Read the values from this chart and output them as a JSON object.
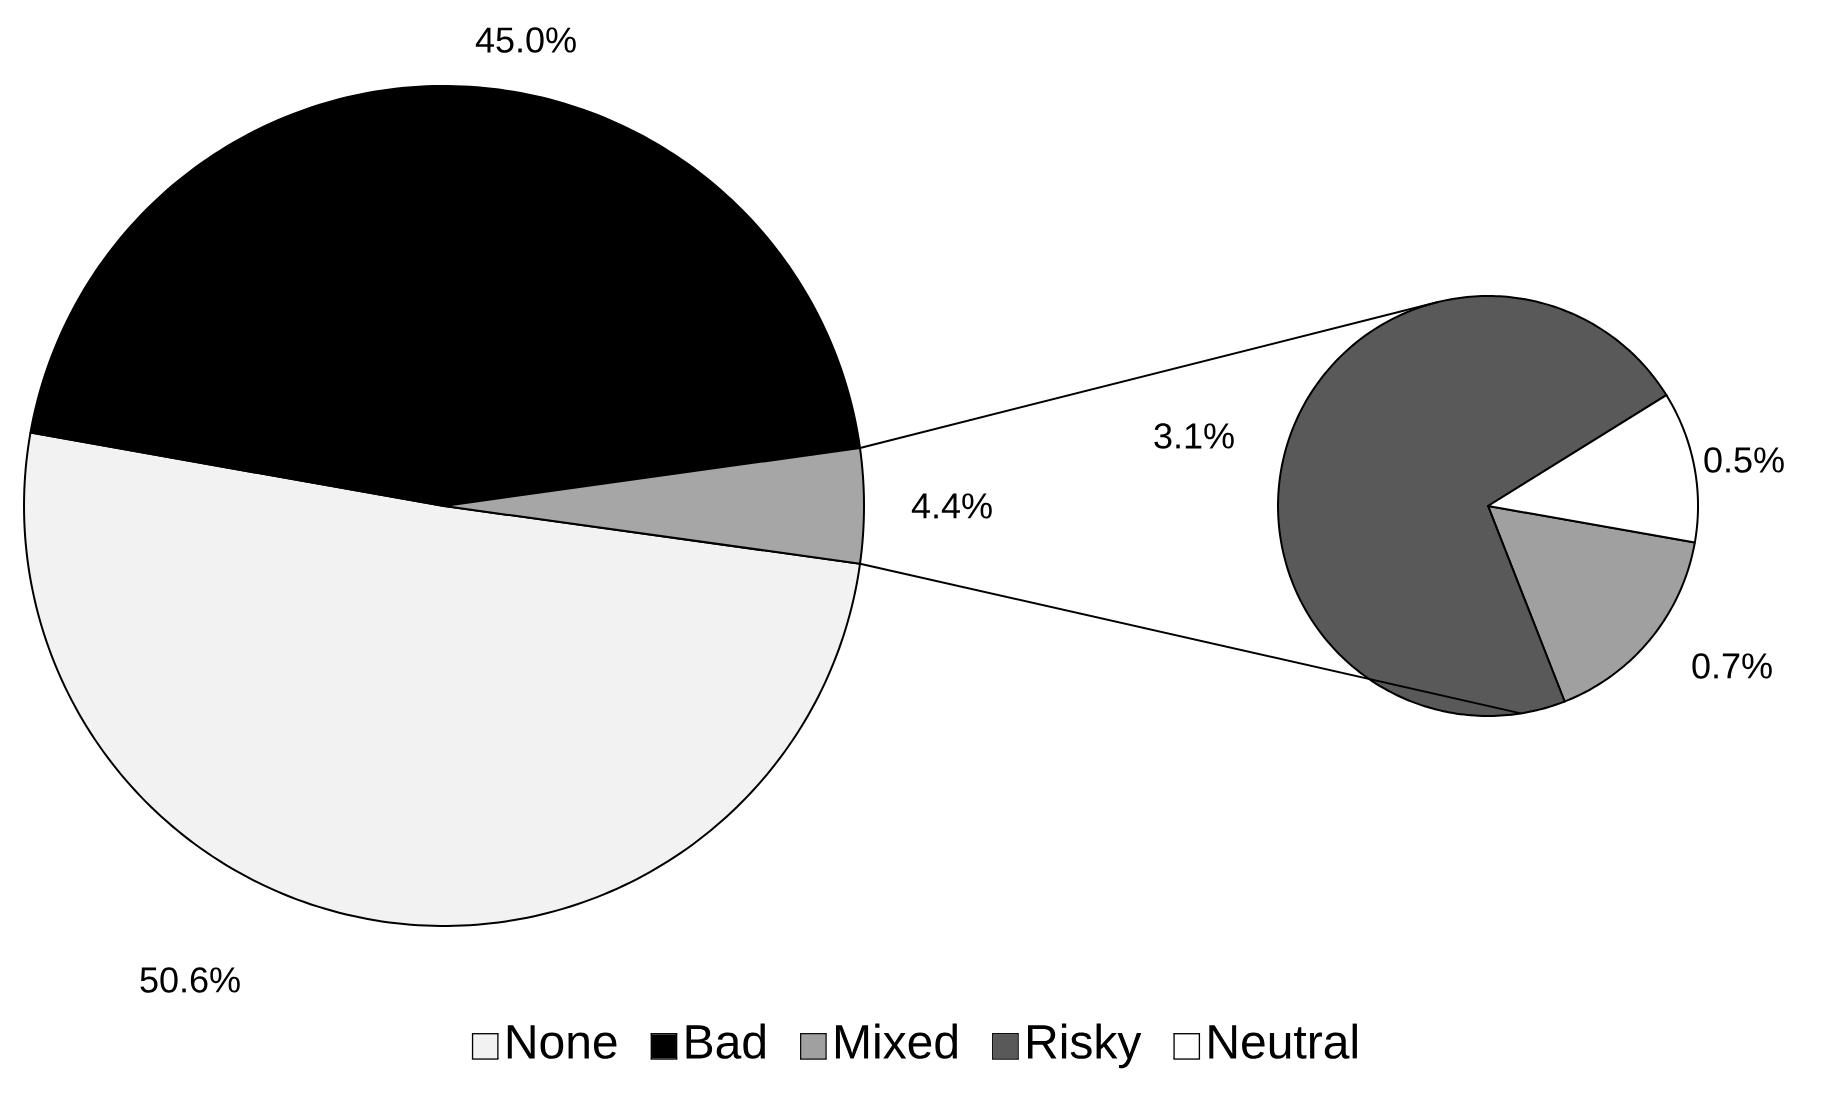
{
  "chart_data": [
    {
      "type": "pie",
      "categories": [
        "None",
        "Bad",
        null
      ],
      "values": [
        50.6,
        45.0,
        4.4
      ],
      "colors": [
        "#f2f2f2",
        "#000000",
        "#a6a6a6"
      ],
      "value_labels": [
        "50.6%",
        "45.0%",
        "4.4%"
      ],
      "legend": "bottom"
    },
    {
      "type": "pie",
      "categories": [
        "Mixed",
        "Risky",
        "Neutral"
      ],
      "values": [
        0.7,
        3.1,
        0.5
      ],
      "colors": [
        "#a0a0a0",
        "#595959",
        "#ffffff"
      ],
      "value_labels": [
        "0.7%",
        "3.1%",
        "0.5%"
      ],
      "legend": "bottom"
    }
  ]
}
